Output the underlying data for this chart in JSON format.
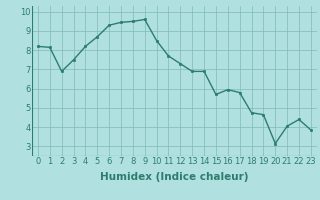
{
  "x": [
    0,
    1,
    2,
    3,
    4,
    5,
    6,
    7,
    8,
    9,
    10,
    11,
    12,
    13,
    14,
    15,
    16,
    17,
    18,
    19,
    20,
    21,
    22,
    23
  ],
  "y": [
    8.2,
    8.15,
    6.9,
    7.5,
    8.2,
    8.7,
    9.3,
    9.45,
    9.5,
    9.6,
    8.5,
    7.7,
    7.3,
    6.9,
    6.9,
    5.7,
    5.95,
    5.8,
    4.75,
    4.65,
    3.15,
    4.05,
    4.4,
    3.85
  ],
  "line_color": "#2d7d6e",
  "marker": "s",
  "marker_size": 2,
  "bg_color": "#b0e0e0",
  "grid_color": "#80b8b8",
  "xlabel": "Humidex (Indice chaleur)",
  "xlabel_fontsize": 7.5,
  "xlim": [
    -0.5,
    23.5
  ],
  "ylim": [
    2.5,
    10.3
  ],
  "yticks": [
    3,
    4,
    5,
    6,
    7,
    8,
    9,
    10
  ],
  "xticks": [
    0,
    1,
    2,
    3,
    4,
    5,
    6,
    7,
    8,
    9,
    10,
    11,
    12,
    13,
    14,
    15,
    16,
    17,
    18,
    19,
    20,
    21,
    22,
    23
  ],
  "tick_fontsize": 6,
  "line_width": 1.0
}
